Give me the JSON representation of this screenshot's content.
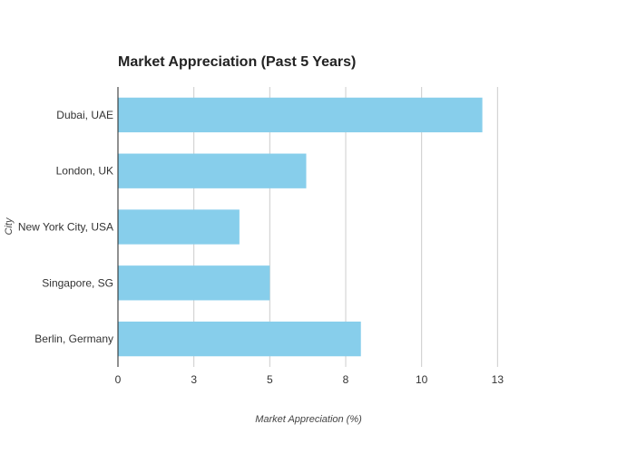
{
  "chart_data": {
    "type": "bar",
    "orientation": "horizontal",
    "title": "Market Appreciation (Past 5 Years)",
    "xlabel": "Market Appreciation (%)",
    "ylabel": "City",
    "categories": [
      "Dubai, UAE",
      "London, UK",
      "New York City, USA",
      "Singapore, SG",
      "Berlin, Germany"
    ],
    "values": [
      12,
      6.2,
      4,
      5,
      8
    ],
    "xlim": [
      0,
      15
    ],
    "xticks": [
      {
        "value": 0,
        "label": "0"
      },
      {
        "value": 2.5,
        "label": "3"
      },
      {
        "value": 5,
        "label": "5"
      },
      {
        "value": 7.5,
        "label": "8"
      },
      {
        "value": 10,
        "label": "10"
      },
      {
        "value": 12.5,
        "label": "13"
      }
    ],
    "grid": true,
    "bar_color": "#87ceeb",
    "grid_color": "#cccccc"
  }
}
